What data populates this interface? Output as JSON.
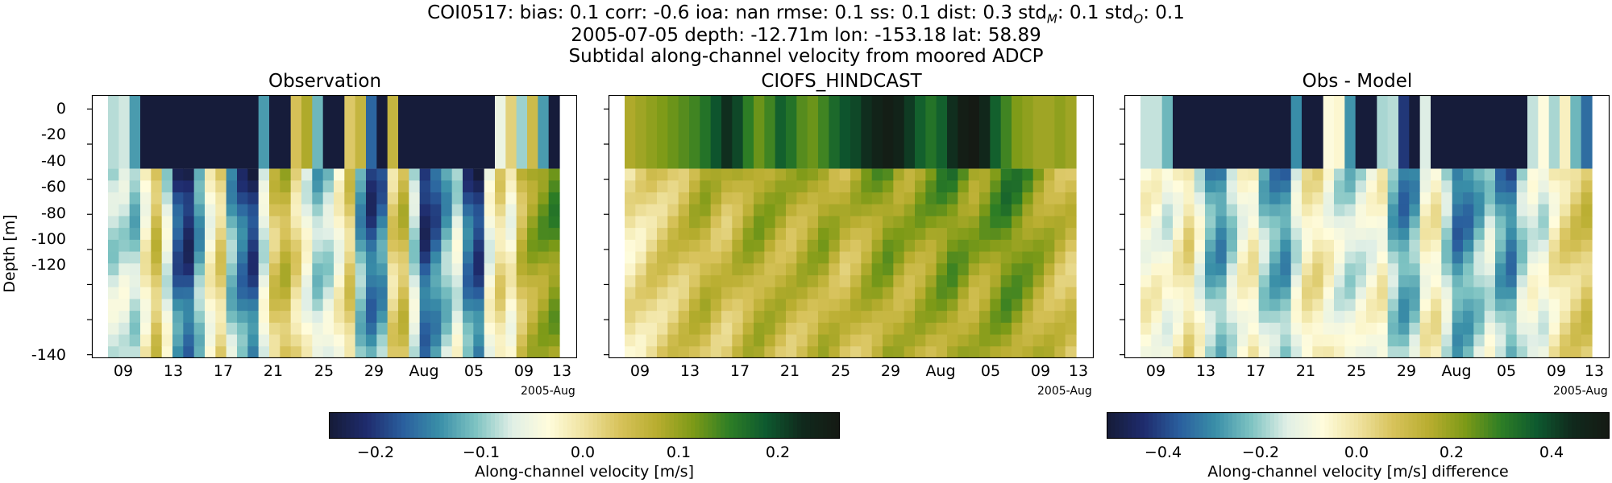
{
  "header": {
    "line1_plain": "COI0517: bias: 0.1  corr: -0.6  ioa: nan  rmse: 0.1  ss: 0.1  dist: 0.3  std",
    "line1_sub_m": "M",
    "line1_mid": ": 0.1  std",
    "line1_sub_o": "O",
    "line1_end": ": 0.1",
    "line2": "2005-07-05 depth: -12.71m lon: -153.18 lat: 58.89",
    "line3": "Subtidal along-channel velocity from moored ADCP"
  },
  "colors": {
    "cmap_stops": [
      "#161c3a",
      "#1f2c6e",
      "#2a5f9e",
      "#3a8fa8",
      "#7ec3c2",
      "#e0efe6",
      "#fffcdc",
      "#efe29f",
      "#d7c25a",
      "#b8ad2f",
      "#7d9a17",
      "#2e7e25",
      "#0e5a2f",
      "#102a1d",
      "#151a14"
    ]
  },
  "chart_data": [
    {
      "type": "heatmap",
      "title": "Observation",
      "ylabel": "Depth [m]",
      "ylim": [
        -142,
        8
      ],
      "yticks": [
        0,
        -20,
        -40,
        -60,
        -80,
        -100,
        -120,
        -140
      ],
      "xticks": [
        "09",
        "13",
        "17",
        "21",
        "25",
        "29",
        "Aug",
        "05",
        "09",
        "13"
      ],
      "x_offset_label": "2005-Aug",
      "x_range": [
        "2005-07-05",
        "2005-08-13"
      ],
      "upper_bin_depth_range": [
        -34,
        8
      ],
      "colorbar": {
        "label": "Along-channel velocity [m/s]",
        "range": [
          -0.26,
          0.26
        ],
        "ticks": [
          "−0.2",
          "−0.1",
          "0.0",
          "0.1",
          "0.2"
        ]
      },
      "time_profile_values": [
        -0.1,
        -0.09,
        -0.12,
        -0.03,
        0.05,
        -0.08,
        -0.22,
        -0.25,
        -0.15,
        -0.04,
        0.02,
        -0.14,
        -0.2,
        -0.24,
        -0.08,
        0.04,
        0.07,
        0.01,
        -0.06,
        -0.12,
        -0.1,
        -0.04,
        0.03,
        -0.15,
        -0.22,
        -0.18,
        0.02,
        0.06,
        -0.1,
        -0.24,
        -0.2,
        -0.14,
        -0.08,
        -0.2,
        -0.24,
        -0.06,
        0.01,
        -0.04,
        0.06,
        0.1,
        0.12,
        0.14
      ],
      "surface_values": [
        -0.09,
        -0.08,
        -0.14,
        -0.26,
        -0.26,
        -0.26,
        -0.26,
        -0.26,
        -0.26,
        -0.26,
        -0.26,
        -0.26,
        -0.26,
        -0.26,
        -0.14,
        -0.26,
        -0.26,
        0.04,
        0.08,
        -0.12,
        -0.26,
        -0.26,
        0.03,
        0.06,
        -0.18,
        -0.26,
        0.06,
        -0.26,
        -0.26,
        -0.26,
        -0.26,
        -0.26,
        -0.26,
        -0.26,
        -0.26,
        -0.26,
        -0.06,
        0.02,
        -0.1,
        0.05,
        -0.14,
        -0.26
      ]
    },
    {
      "type": "heatmap",
      "title": "CIOFS_HINDCAST",
      "ylim": [
        -142,
        8
      ],
      "yticks": [
        0,
        -20,
        -40,
        -60,
        -80,
        -100,
        -120,
        -140
      ],
      "xticks": [
        "09",
        "13",
        "17",
        "21",
        "25",
        "29",
        "Aug",
        "05",
        "09",
        "13"
      ],
      "x_offset_label": "2005-Aug",
      "x_range": [
        "2005-07-05",
        "2005-08-13"
      ],
      "upper_bin_depth_range": [
        -34,
        8
      ],
      "colorbar": {
        "label": "Along-channel velocity [m/s]",
        "range": [
          -0.26,
          0.26
        ],
        "ticks": [
          "−0.2",
          "−0.1",
          "0.0",
          "0.1",
          "0.2"
        ]
      },
      "time_profile_values": [
        -0.01,
        0.0,
        0.02,
        0.03,
        0.04,
        0.05,
        0.07,
        0.08,
        0.06,
        0.05,
        0.07,
        0.09,
        0.1,
        0.09,
        0.08,
        0.07,
        0.08,
        0.09,
        0.1,
        0.08,
        0.06,
        0.07,
        0.09,
        0.11,
        0.12,
        0.1,
        0.09,
        0.1,
        0.11,
        0.13,
        0.14,
        0.12,
        0.1,
        0.11,
        0.13,
        0.15,
        0.14,
        0.12,
        0.1,
        0.08,
        0.06,
        0.05
      ],
      "surface_values": [
        0.08,
        0.09,
        0.1,
        0.11,
        0.12,
        0.13,
        0.14,
        0.16,
        0.19,
        0.22,
        0.2,
        0.15,
        0.12,
        0.14,
        0.18,
        0.16,
        0.13,
        0.12,
        0.14,
        0.17,
        0.19,
        0.2,
        0.22,
        0.24,
        0.25,
        0.24,
        0.21,
        0.18,
        0.16,
        0.18,
        0.22,
        0.25,
        0.26,
        0.23,
        0.18,
        0.14,
        0.11,
        0.1,
        0.09,
        0.09,
        0.1,
        0.09
      ]
    },
    {
      "type": "heatmap",
      "title": "Obs - Model",
      "ylim": [
        -142,
        8
      ],
      "yticks": [
        0,
        -20,
        -40,
        -60,
        -80,
        -100,
        -120,
        -140
      ],
      "xticks": [
        "09",
        "13",
        "17",
        "21",
        "25",
        "29",
        "Aug",
        "05",
        "09",
        "13"
      ],
      "x_offset_label": "2005-Aug",
      "x_range": [
        "2005-07-05",
        "2005-08-13"
      ],
      "upper_bin_depth_range": [
        -34,
        8
      ],
      "colorbar": {
        "label": "Along-channel velocity [m/s] difference",
        "range": [
          -0.52,
          0.52
        ],
        "ticks": [
          "−0.4",
          "−0.2",
          "0.0",
          "0.2",
          "0.4"
        ]
      },
      "time_profile_values": [
        -0.08,
        -0.09,
        -0.14,
        -0.06,
        0.01,
        -0.13,
        -0.29,
        -0.33,
        -0.21,
        -0.09,
        -0.05,
        -0.23,
        -0.3,
        -0.33,
        -0.16,
        -0.03,
        -0.01,
        -0.08,
        -0.16,
        -0.2,
        -0.16,
        -0.11,
        -0.06,
        -0.26,
        -0.34,
        -0.28,
        -0.07,
        -0.04,
        -0.21,
        -0.37,
        -0.34,
        -0.26,
        -0.18,
        -0.31,
        -0.37,
        -0.21,
        -0.13,
        -0.16,
        -0.04,
        0.02,
        0.06,
        0.09
      ],
      "surface_values": [
        -0.17,
        -0.17,
        -0.24,
        -0.52,
        -0.52,
        -0.52,
        -0.52,
        -0.52,
        -0.52,
        -0.52,
        -0.52,
        -0.52,
        -0.52,
        -0.52,
        -0.3,
        -0.52,
        -0.52,
        -0.08,
        -0.06,
        -0.29,
        -0.52,
        -0.52,
        -0.19,
        -0.18,
        -0.43,
        -0.52,
        -0.15,
        -0.52,
        -0.52,
        -0.52,
        -0.52,
        -0.52,
        -0.52,
        -0.52,
        -0.52,
        -0.52,
        -0.17,
        -0.08,
        -0.19,
        -0.04,
        -0.24,
        -0.35
      ]
    }
  ]
}
